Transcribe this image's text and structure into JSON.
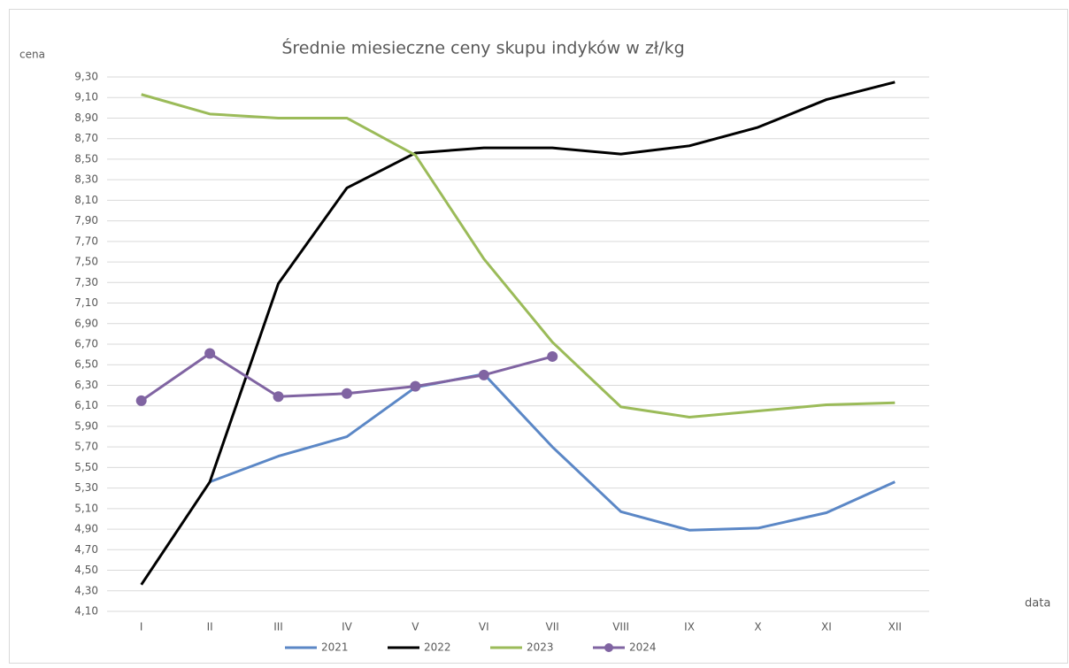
{
  "chart_data": {
    "type": "line",
    "title": "Średnie miesieczne ceny skupu indyków w zł/kg",
    "y_label": "cena",
    "x_label": "data",
    "categories": [
      "I",
      "II",
      "III",
      "IV",
      "V",
      "VI",
      "VII",
      "VIII",
      "IX",
      "X",
      "XI",
      "XII"
    ],
    "series": [
      {
        "name": "2021",
        "color": "#5b87c6",
        "markers": false,
        "values": [
          null,
          5.36,
          5.61,
          5.8,
          6.28,
          6.41,
          5.7,
          5.07,
          4.89,
          4.91,
          5.06,
          5.36
        ]
      },
      {
        "name": "2022",
        "color": "#000000",
        "markers": false,
        "values": [
          4.36,
          5.36,
          7.29,
          8.22,
          8.56,
          8.61,
          8.61,
          8.55,
          8.63,
          8.81,
          9.08,
          9.25
        ]
      },
      {
        "name": "2023",
        "color": "#9bbb59",
        "markers": false,
        "values": [
          9.13,
          8.94,
          8.9,
          8.9,
          8.54,
          7.53,
          6.72,
          6.09,
          5.99,
          6.05,
          6.11,
          6.13
        ]
      },
      {
        "name": "2024",
        "color": "#8064a2",
        "markers": true,
        "values": [
          6.15,
          6.61,
          6.19,
          6.22,
          6.29,
          6.4,
          6.58,
          null,
          null,
          null,
          null,
          null
        ]
      }
    ],
    "ylim": [
      4.1,
      9.3
    ],
    "yticks": [
      {
        "value": 4.1,
        "label": "4,10"
      },
      {
        "value": 4.3,
        "label": "4,30"
      },
      {
        "value": 4.5,
        "label": "4,50"
      },
      {
        "value": 4.7,
        "label": "4,70"
      },
      {
        "value": 4.9,
        "label": "4,90"
      },
      {
        "value": 5.1,
        "label": "5,10"
      },
      {
        "value": 5.3,
        "label": "5,30"
      },
      {
        "value": 5.5,
        "label": "5,50"
      },
      {
        "value": 5.7,
        "label": "5,70"
      },
      {
        "value": 5.9,
        "label": "5,90"
      },
      {
        "value": 6.1,
        "label": "6,10"
      },
      {
        "value": 6.3,
        "label": "6,30"
      },
      {
        "value": 6.5,
        "label": "6,50"
      },
      {
        "value": 6.7,
        "label": "6,70"
      },
      {
        "value": 6.9,
        "label": "6,90"
      },
      {
        "value": 7.1,
        "label": "7,10"
      },
      {
        "value": 7.3,
        "label": "7,30"
      },
      {
        "value": 7.5,
        "label": "7,50"
      },
      {
        "value": 7.7,
        "label": "7,70"
      },
      {
        "value": 7.9,
        "label": "7,90"
      },
      {
        "value": 8.1,
        "label": "8,10"
      },
      {
        "value": 8.3,
        "label": "8,30"
      },
      {
        "value": 8.5,
        "label": "8,50"
      },
      {
        "value": 8.7,
        "label": "8,70"
      },
      {
        "value": 8.9,
        "label": "8,90"
      },
      {
        "value": 9.1,
        "label": "9,10"
      },
      {
        "value": 9.3,
        "label": "9,30"
      }
    ],
    "grid": true,
    "legend": "bottom"
  }
}
